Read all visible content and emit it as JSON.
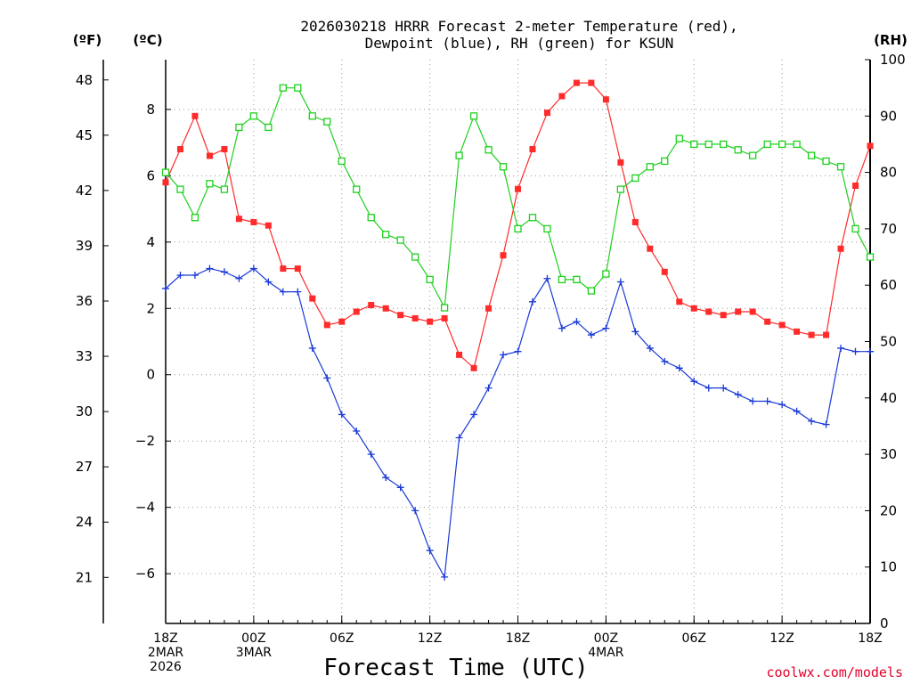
{
  "chart_data": {
    "type": "line",
    "title_line1": "2026030218 HRRR Forecast 2-meter Temperature (red),",
    "title_line2": "Dewpoint (blue), RH (green) for KSUN",
    "xlabel": "Forecast Time (UTC)",
    "credit": "coolwx.com/models",
    "left_unit_f": "(ºF)",
    "left_unit_c": "(ºC)",
    "right_unit": "(RH)",
    "xlim": [
      0,
      48
    ],
    "ylim_c": [
      -7.5,
      9.5
    ],
    "ylim_rh": [
      0,
      100
    ],
    "yticks_f": [
      21,
      24,
      27,
      30,
      33,
      36,
      39,
      42,
      45,
      48
    ],
    "yticks_c": [
      -6,
      -4,
      -2,
      0,
      2,
      4,
      6,
      8
    ],
    "yticks_rh": [
      0,
      10,
      20,
      30,
      40,
      50,
      60,
      70,
      80,
      90,
      100
    ],
    "grid": true,
    "x_ticks": [
      {
        "x": 0,
        "lines": [
          "18Z",
          "2MAR",
          "2026"
        ]
      },
      {
        "x": 6,
        "lines": [
          "00Z",
          "3MAR"
        ]
      },
      {
        "x": 12,
        "lines": [
          "06Z"
        ]
      },
      {
        "x": 18,
        "lines": [
          "12Z"
        ]
      },
      {
        "x": 24,
        "lines": [
          "18Z"
        ]
      },
      {
        "x": 30,
        "lines": [
          "00Z",
          "4MAR"
        ]
      },
      {
        "x": 36,
        "lines": [
          "06Z"
        ]
      },
      {
        "x": 42,
        "lines": [
          "12Z"
        ]
      },
      {
        "x": 48,
        "lines": [
          "18Z"
        ]
      }
    ],
    "series": [
      {
        "name": "Temperature",
        "color": "#ff2a2a",
        "marker": "filled-square",
        "axis": "celsius",
        "values": [
          5.8,
          6.8,
          7.8,
          6.6,
          6.8,
          4.7,
          4.6,
          4.5,
          3.2,
          3.2,
          2.3,
          1.5,
          1.6,
          1.9,
          2.1,
          2.0,
          1.8,
          1.7,
          1.6,
          1.7,
          0.6,
          0.2,
          2.0,
          3.6,
          5.6,
          6.8,
          7.9,
          8.4,
          8.8,
          8.8,
          8.3,
          6.4,
          4.6,
          3.8,
          3.1,
          2.2,
          2.0,
          1.9,
          1.8,
          1.9,
          1.9,
          1.6,
          1.5,
          1.3,
          1.2,
          1.2,
          3.8,
          5.7,
          6.9
        ]
      },
      {
        "name": "Dewpoint",
        "color": "#1a3ad6",
        "marker": "plus",
        "axis": "celsius",
        "values": [
          2.6,
          3.0,
          3.0,
          3.2,
          3.1,
          2.9,
          3.2,
          2.8,
          2.5,
          2.5,
          0.8,
          -0.1,
          -1.2,
          -1.7,
          -2.4,
          -3.1,
          -3.4,
          -4.1,
          -5.3,
          -6.1,
          -1.9,
          -1.2,
          -0.4,
          0.6,
          0.7,
          2.2,
          2.9,
          1.4,
          1.6,
          1.2,
          1.4,
          2.8,
          1.3,
          0.8,
          0.4,
          0.2,
          -0.2,
          -0.4,
          -0.4,
          -0.6,
          -0.8,
          -0.8,
          -0.9,
          -1.1,
          -1.4,
          -1.5,
          0.8,
          0.7,
          0.7
        ]
      },
      {
        "name": "RH",
        "color": "#1ed01e",
        "marker": "open-square",
        "axis": "rh",
        "values": [
          80,
          77,
          72,
          78,
          77,
          88,
          90,
          88,
          95,
          95,
          90,
          89,
          82,
          77,
          72,
          69,
          68,
          65,
          61,
          56,
          83,
          90,
          84,
          81,
          70,
          72,
          70,
          61,
          61,
          59,
          62,
          77,
          79,
          81,
          82,
          86,
          85,
          85,
          85,
          84,
          83,
          85,
          85,
          85,
          83,
          82,
          81,
          70,
          65
        ]
      }
    ]
  }
}
